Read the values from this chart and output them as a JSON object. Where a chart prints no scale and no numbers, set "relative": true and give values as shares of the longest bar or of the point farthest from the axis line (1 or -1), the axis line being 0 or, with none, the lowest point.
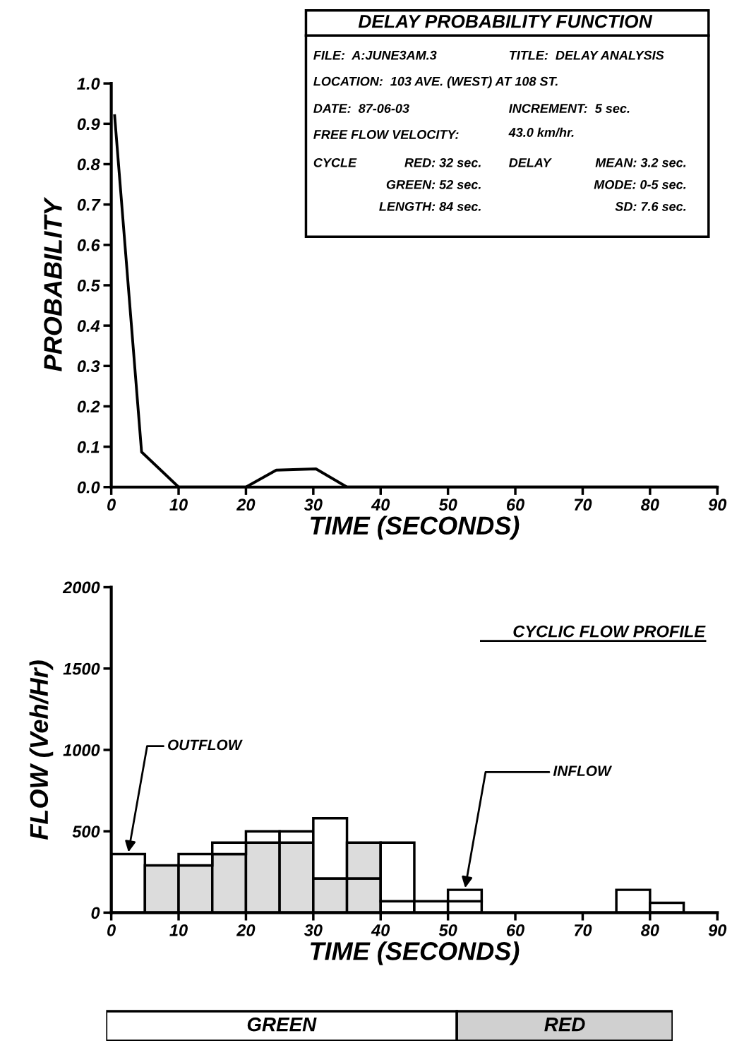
{
  "chart_data": [
    {
      "type": "line",
      "title": "DELAY PROBABILITY FUNCTION",
      "xlabel": "TIME (SECONDS)",
      "ylabel": "PROBABILITY",
      "annotations": [
        "FILE:  A:JUNE3AM.3",
        "TITLE:  DELAY ANALYSIS",
        "LOCATION:  103 AVE. (WEST) AT 108 ST.",
        "DATE:  87-06-03",
        "INCREMENT:  5 sec.",
        "FREE FLOW VELOCITY:",
        "43.0 km/hr.",
        "CYCLE",
        "RED: 32 sec.",
        "GREEN: 52 sec.",
        "LENGTH: 84 sec.",
        "DELAY",
        "MEAN: 3.2 sec.",
        "MODE: 0-5 sec.",
        "SD: 7.6 sec."
      ],
      "x": [
        0.5,
        4.5,
        10,
        20,
        24.5,
        30.4,
        35,
        90
      ],
      "series": [
        {
          "color": "#000000",
          "values": [
            0.92,
            0.087,
            0,
            0,
            0.042,
            0.045,
            0,
            0
          ]
        }
      ],
      "xlim": [
        0,
        90
      ],
      "xticks": [
        0,
        10,
        20,
        30,
        40,
        50,
        60,
        70,
        80,
        90
      ],
      "ylim": [
        0,
        1.0
      ],
      "yticks": [
        {
          "value": 0,
          "label": "0.0"
        },
        0.1,
        0.2,
        0.3,
        0.4,
        0.5,
        0.6,
        0.7,
        0.8,
        0.9,
        {
          "value": 1,
          "label": "1.0"
        }
      ],
      "grid": false,
      "legend": false,
      "marker": "none",
      "line_style": "solid"
    },
    {
      "type": "bar",
      "title": "CYCLIC FLOW PROFILE",
      "xlabel": "TIME (SECONDS)",
      "ylabel": "FLOW (Veh/Hr)",
      "stacked": true,
      "annotations": [
        {
          "text": "OUTFLOW",
          "x": 2.5,
          "y": 360
        },
        {
          "text": "INFLOW",
          "x": 52.5,
          "y": 140
        }
      ],
      "x": [
        2.5,
        7.5,
        12.5,
        17.5,
        22.5,
        27.5,
        32.5,
        37.5,
        42.5,
        47.5,
        52.5,
        57.5,
        62.5,
        67.5,
        72.5,
        77.5,
        82.5
      ],
      "series": [
        {
          "colors": [
            "#ffffff",
            "#dcdcdc",
            "#dcdcdc",
            "#dcdcdc",
            "#dcdcdc",
            "#dcdcdc",
            "#dcdcdc",
            "#dcdcdc",
            "#ffffff",
            "#ffffff",
            "#ffffff",
            null,
            null,
            null,
            null,
            "#ffffff",
            "#ffffff"
          ],
          "values": [
            360,
            290,
            290,
            360,
            430,
            430,
            210,
            210,
            70,
            70,
            70,
            null,
            null,
            null,
            null,
            140,
            60
          ]
        },
        {
          "colors": [
            null,
            null,
            "#ffffff",
            "#ffffff",
            "#ffffff",
            "#ffffff",
            "#ffffff",
            "#dcdcdc",
            "#ffffff",
            null,
            "#ffffff",
            null,
            null,
            null,
            null,
            null,
            null
          ],
          "values": [
            null,
            null,
            70,
            70,
            70,
            70,
            370,
            220,
            360,
            null,
            70,
            null,
            null,
            null,
            null,
            null,
            null
          ]
        }
      ],
      "xlim": [
        0,
        90
      ],
      "xticks": [
        0,
        10,
        20,
        30,
        40,
        50,
        60,
        70,
        80,
        90
      ],
      "ylim": [
        0,
        2000
      ],
      "yticks": [
        0,
        500,
        1000,
        1500,
        2000
      ],
      "grid": false,
      "legend": false
    },
    {
      "type": "bar",
      "orientation": "horizontal",
      "stacked": true,
      "relative": true,
      "categories": [
        null
      ],
      "series": [
        {
          "name": "GREEN",
          "color": "#ffffff",
          "values": [
            0.619
          ]
        },
        {
          "name": "RED",
          "color": "#d0d0d0",
          "values": [
            0.381
          ]
        }
      ],
      "legend": false
    }
  ]
}
